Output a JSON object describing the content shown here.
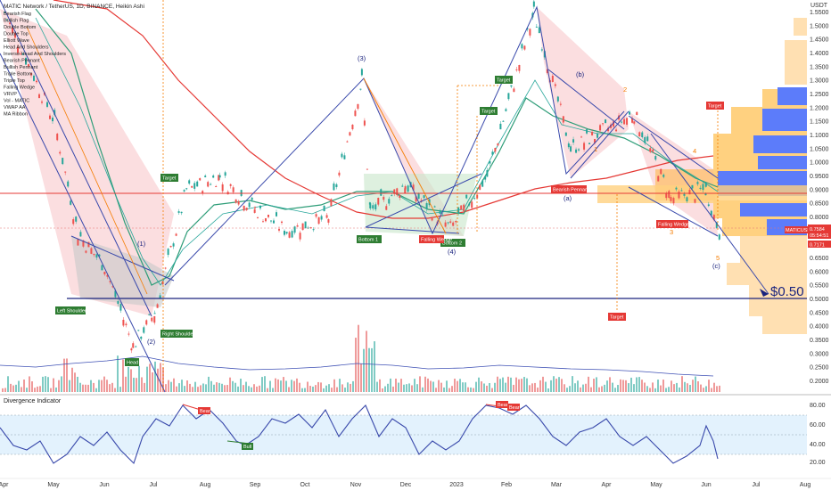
{
  "header": {
    "title": "MATIC Network / TetherUS, 1D, BINANCE, Heikin Ashi",
    "indicators": [
      "Bearish Flag",
      "Bullish Flag",
      "Double Bottom",
      "Double Top",
      "Elliott Wave",
      "Head And Shoulders",
      "Inverse Head And Shoulders",
      "Bearish Pennant",
      "Bullish Pennant",
      "Triple Bottom",
      "Triple Top",
      "Falling Wedge",
      "VRVP",
      "Vol - MATIC",
      "VWAP AA",
      "MA Ribbon"
    ]
  },
  "currency": "USDT",
  "price_axis": [
    "1.5500",
    "1.5000",
    "1.4500",
    "1.4000",
    "1.3500",
    "1.3000",
    "1.2500",
    "1.2000",
    "1.1500",
    "1.1000",
    "1.0500",
    "1.0000",
    "0.9500",
    "0.9000",
    "0.8500",
    "0.8000",
    "0.7500",
    "0.7000",
    "0.6500",
    "0.6000",
    "0.5500",
    "0.5000",
    "0.4500",
    "0.4000",
    "0.3500",
    "0.3000",
    "0.2500",
    "0.2000"
  ],
  "time_axis": [
    "Apr",
    "May",
    "Jun",
    "Jul",
    "Aug",
    "Sep",
    "Oct",
    "Nov",
    "Dec",
    "2023",
    "Feb",
    "Mar",
    "Apr",
    "May",
    "Jun",
    "Jul",
    "Aug"
  ],
  "price_tags": {
    "symbol": "MATICUSDT",
    "price": "0.7584",
    "countdown": "05:54:51",
    "lower": "0.7171"
  },
  "target_text": "$0.50",
  "pattern_labels": {
    "left_shoulder": "Left Shoulder",
    "head": "Head",
    "right_shoulder": "Right Shoulder",
    "target": "Target",
    "bottom1": "Bottom 1",
    "bottom2": "Bottom 2",
    "falling_wedge": "Falling Wedge",
    "bearish_pennant": "Bearish Pennant"
  },
  "wave_labels": {
    "w1": "(1)",
    "w2": "(2)",
    "w3": "(3)",
    "w4": "(4)",
    "wa": "(a)",
    "wb": "(b)",
    "wc": "(c)",
    "s1": "1",
    "s2": "2",
    "s3": "3",
    "s4": "4",
    "s5": "5"
  },
  "divergence": {
    "title": "Divergence Indicator",
    "axis": [
      "80.00",
      "60.00",
      "40.00",
      "20.00"
    ],
    "bear": "Bear",
    "bull": "Bull"
  },
  "chart_data": {
    "type": "line",
    "title": "MATIC Network / TetherUS, 1D, BINANCE, Heikin Ashi",
    "price_series": [
      {
        "date": "2022-04",
        "price": 1.55
      },
      {
        "date": "2022-05-01",
        "price": 1.15
      },
      {
        "date": "2022-05-15",
        "price": 0.74
      },
      {
        "date": "2022-06-01",
        "price": 0.62
      },
      {
        "date": "2022-06-18",
        "price": 0.33
      },
      {
        "date": "2022-07-01",
        "price": 0.45
      },
      {
        "date": "2022-07-20",
        "price": 0.9
      },
      {
        "date": "2022-08-10",
        "price": 0.95
      },
      {
        "date": "2022-09-01",
        "price": 0.83
      },
      {
        "date": "2022-09-20",
        "price": 0.75
      },
      {
        "date": "2022-10-15",
        "price": 0.8
      },
      {
        "date": "2022-11-05",
        "price": 1.3
      },
      {
        "date": "2022-11-10",
        "price": 0.82
      },
      {
        "date": "2022-12-01",
        "price": 0.92
      },
      {
        "date": "2022-12-28",
        "price": 0.76
      },
      {
        "date": "2023-01-20",
        "price": 0.95
      },
      {
        "date": "2023-02-18",
        "price": 1.55
      },
      {
        "date": "2023-03-10",
        "price": 1.05
      },
      {
        "date": "2023-04-18",
        "price": 1.18
      },
      {
        "date": "2023-05-10",
        "price": 0.87
      },
      {
        "date": "2023-06-01",
        "price": 0.9
      },
      {
        "date": "2023-06-10",
        "price": 0.72
      }
    ],
    "horizontal_lines": [
      {
        "price": 0.89,
        "color": "#e53935"
      },
      {
        "price": 0.51,
        "color": "#1a237e"
      }
    ],
    "projected_target": 0.5,
    "divergence_range": [
      20,
      80
    ]
  }
}
